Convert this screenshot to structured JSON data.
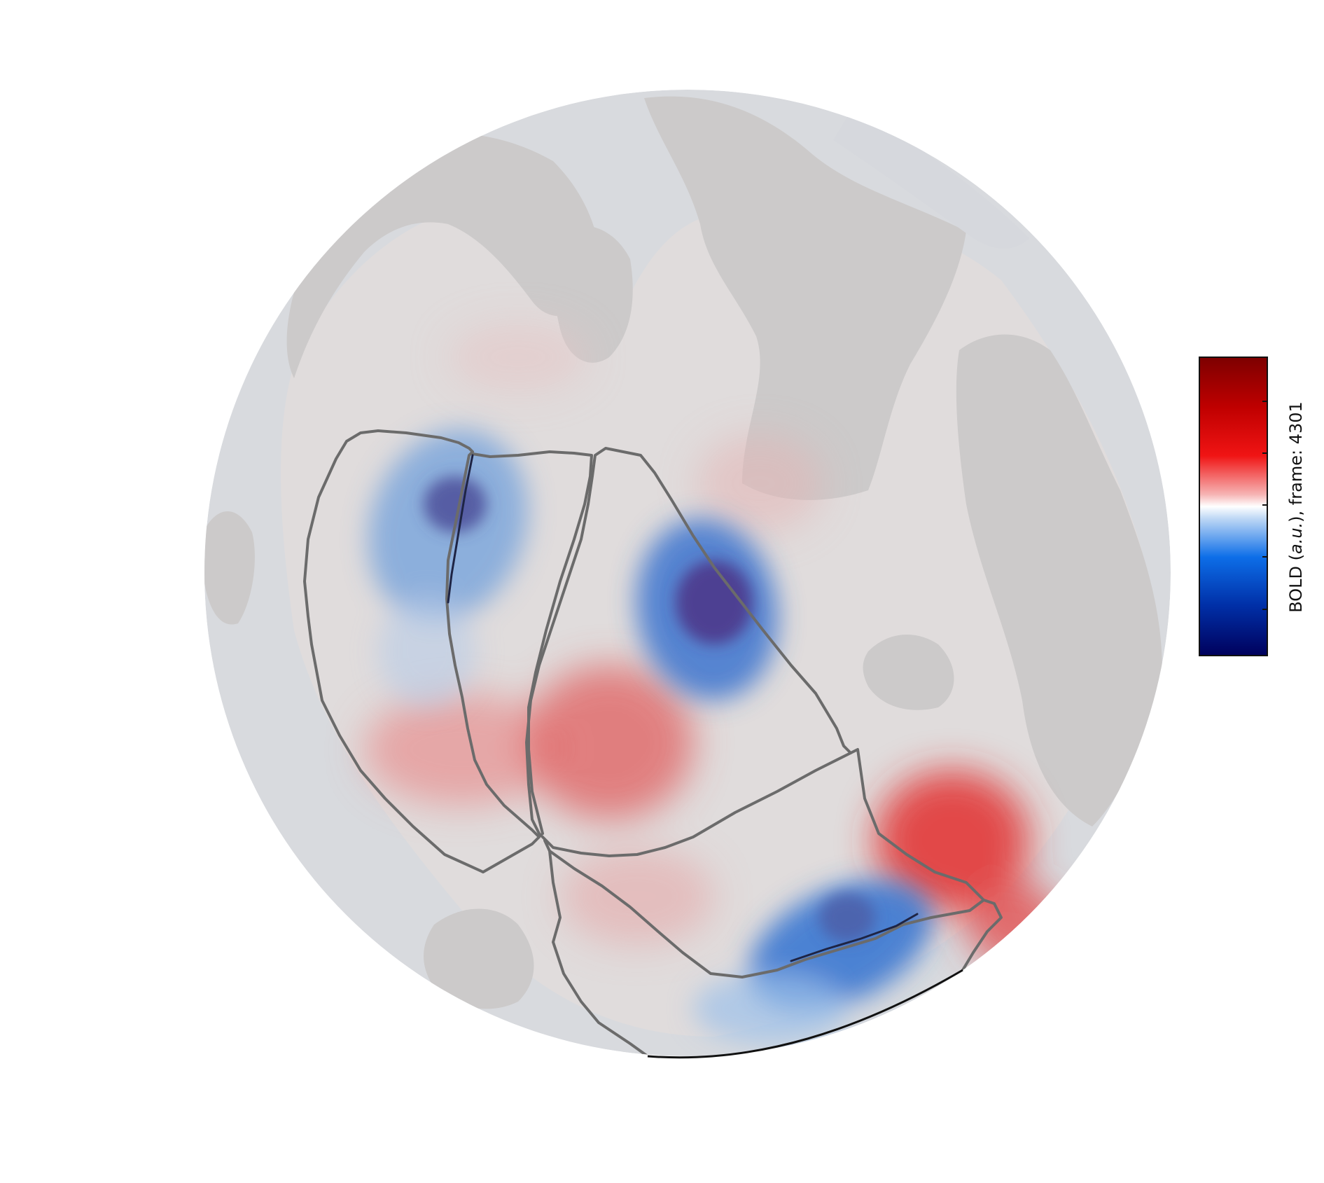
{
  "colorbar": {
    "label_prefix": "BOLD (",
    "label_italic": "a.u.",
    "label_suffix": "), frame: 4301",
    "colormap": "seismic-like diverging blue-white-red",
    "colors": {
      "darkblue": "#00005c",
      "blue": "#0d6ee8",
      "lightblue": "#bfd8f5",
      "white": "#ffffff",
      "lightred": "#f6b4b4",
      "red": "#f01414",
      "darkred": "#7d0000"
    }
  },
  "brain": {
    "surface_colors": {
      "light": "#e0dcdc",
      "dark": "#cccaca",
      "blue_gray": "#d8dade"
    },
    "activation_colors": {
      "negative": "#2f5fc4",
      "strong_negative": "#4d3b8e",
      "positive": "#e06060",
      "strong_positive": "#e23030"
    },
    "outline_color": "#6b6b6b"
  }
}
